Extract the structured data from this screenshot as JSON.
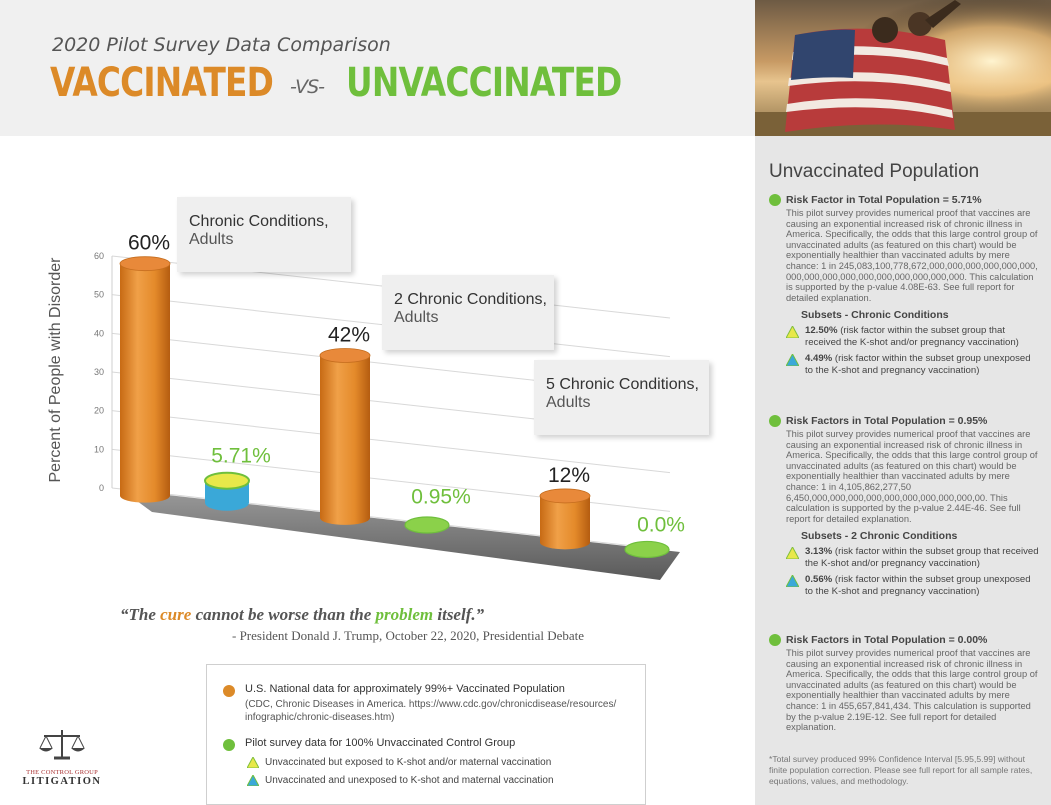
{
  "header": {
    "subtitle": "2020 Pilot Survey Data Comparison",
    "title_left": "VACCINATED",
    "title_vs": "-VS-",
    "title_right": "UNVACCINATED"
  },
  "colors": {
    "vaccinated": "#dc8a28",
    "unvaccinated": "#6fbf3c",
    "teal": "#3aa8d8",
    "yellow": "#e8e84a"
  },
  "chart_data": {
    "type": "bar",
    "title": "",
    "ylabel": "Percent of People with Disorder",
    "ylim": [
      0,
      60
    ],
    "yticks": [
      "0",
      "10",
      "20",
      "30",
      "40",
      "50",
      "60"
    ],
    "categories": [
      {
        "label": "Chronic Conditions,",
        "sub": "Adults"
      },
      {
        "label": "2 Chronic Conditions,",
        "sub": "Adults"
      },
      {
        "label": "5 Chronic Conditions,",
        "sub": "Adults"
      }
    ],
    "series": [
      {
        "values": [
          60,
          42,
          12
        ],
        "labels": [
          "60%",
          "42%",
          "12%"
        ]
      },
      {
        "values": [
          5.71,
          0.95,
          0.0
        ],
        "labels": [
          "5.71%",
          "0.95%",
          "0.0%"
        ]
      }
    ]
  },
  "sidebar": {
    "title": "Unvaccinated Population",
    "sections": [
      {
        "head": "Risk Factor in Total Population = 5.71%",
        "body": "This pilot survey provides numerical proof that vaccines are causing an exponential increased risk of chronic illness in America. Specifically, the odds that this large control group of unvaccinated adults (as featured on this chart) would be exponentially healthier than vaccinated adults by mere chance: 1 in 245,083,100,778,672,000,000,000,000,000,000, 000,000,000,000,000,000,000,000,000,000. This calculation is supported by the p-value 4.08E-63. See full report for detailed explanation.",
        "subsets_title": "Subsets - Chronic Conditions",
        "subsets": [
          {
            "pct": "12.50%",
            "text": " (risk factor within the subset group that received the K-shot and/or pregnancy vaccination)"
          },
          {
            "pct": "4.49%",
            "text": " (risk factor within the subset group unexposed to the K-shot and pregnancy vaccination)"
          }
        ]
      },
      {
        "head": "Risk Factors in Total Population = 0.95%",
        "body": "This pilot survey provides numerical proof that vaccines are causing an exponential increased risk of chronic illness in America. Specifically, the odds that this large control group of unvaccinated adults (as featured on this chart) would be exponentially healthier than vaccinated adults by mere chance: 1 in 4,105,862,277,50 6,450,000,000,000,000,000,000,000,000,000,00. This calculation is supported by the p-value 2.44E-46. See full report for detailed explanation.",
        "subsets_title": "Subsets - 2 Chronic Conditions",
        "subsets": [
          {
            "pct": "3.13%",
            "text": " (risk factor within the subset group that received the K-shot and/or pregnancy vaccination)"
          },
          {
            "pct": "0.56%",
            "text": " (risk factor within the subset group unexposed to the K-shot and pregnancy vaccination)"
          }
        ]
      },
      {
        "head": "Risk Factors in Total Population = 0.00%",
        "body": "This pilot survey provides numerical proof that vaccines are causing an exponential increased risk of chronic illness in America. Specifically, the odds that this large control group of unvaccinated adults (as featured on this chart) would be exponentially healthier than vaccinated adults by mere chance: 1 in 455,657,841,434. This calculation is supported by the p-value 2.19E-12. See full report for detailed explanation."
      }
    ],
    "footnote": "*Total survey produced 99% Confidence Interval [5.95,5.99] without finite population correction. Please see full report for all sample rates, equations, values, and methodology."
  },
  "quote": {
    "open": "“The ",
    "cure": "cure",
    "mid": " cannot be worse than the ",
    "problem": "problem",
    "close": " itself.”",
    "attribution": "- President Donald J. Trump, October 22, 2020, Presidential Debate"
  },
  "legend": {
    "vax_main": "U.S. National data for approximately 99%+ Vaccinated Population",
    "vax_src": "(CDC, Chronic Diseases in America. https://www.cdc.gov/chronicdisease/resources/ infographic/chronic-diseases.htm)",
    "unvax_main": "Pilot survey data for 100% Unvaccinated Control Group",
    "sub1": "Unvaccinated but exposed to K-shot and/or maternal vaccination",
    "sub2": "Unvaccinated and unexposed to K-shot and maternal vaccination"
  },
  "logo": {
    "line1": "THE CONTROL GROUP",
    "line2": "LITIGATION"
  }
}
